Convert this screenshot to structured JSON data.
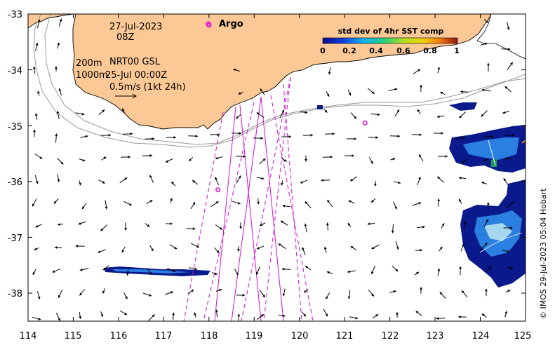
{
  "map": {
    "date": "27-Jul-2023",
    "hour": "08Z",
    "depth_line1": "200m",
    "depth_line2": "1000m",
    "model": "NRT00 GSL",
    "model_time": "25-Jul 00:00Z",
    "scale_label": "0.5m/s (1kt 24h)",
    "argo_label": "Argo",
    "colorbar_title": "std dev of 4hr SST comp",
    "colorbar_ticks": [
      "0",
      "0.2",
      "0.4",
      "0.6",
      "0.8",
      "1"
    ],
    "credit": "© IMOS 29-Jul-2023 05:04 Hobart",
    "lon_ticks": [
      "114",
      "115",
      "116",
      "117",
      "118",
      "119",
      "120",
      "121",
      "122",
      "123",
      "124",
      "125"
    ],
    "lat_ticks": [
      "-33",
      "-34",
      "-35",
      "-36",
      "-37",
      "-38"
    ],
    "argo_floats": [
      {
        "lon": 118.0,
        "lat": -33.2
      },
      {
        "lon": 121.45,
        "lat": -34.95
      },
      {
        "lon": 118.2,
        "lat": -36.15
      }
    ],
    "colors": {
      "land": "#fcc895",
      "coast": "#000000",
      "argo": "#e000e0",
      "track": "#d010d0",
      "sst_dark": "#0a1a8c",
      "sst_mid": "#2a7fe0",
      "sst_light": "#a8d8f0"
    }
  }
}
